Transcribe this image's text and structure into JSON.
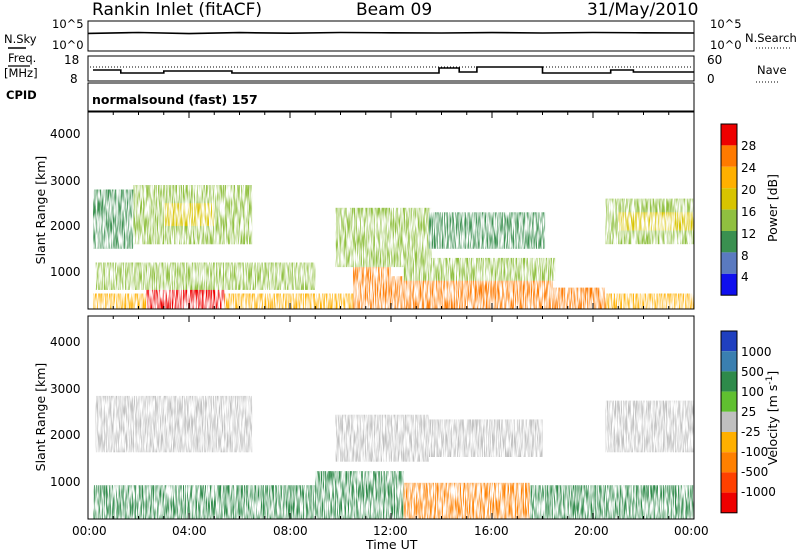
{
  "header": {
    "station": "Rankin Inlet (fitACF)",
    "beam": "Beam 09",
    "date": "31/May/2010"
  },
  "summary": {
    "nsky_label": "N.Sky",
    "nsky_ticks": [
      "10^5",
      "10^0"
    ],
    "nsearch_label": "N.Search",
    "nsearch_ticks": [
      "10^5",
      "10^0"
    ],
    "freq_label": "Freq.",
    "freq_unit": "[MHz]",
    "freq_ticks": [
      "18",
      "8"
    ],
    "nave_label": "Nave",
    "nave_ticks": [
      "60",
      "0"
    ],
    "cpid_label": "CPID",
    "cpid_text": "normalsound (fast) 157"
  },
  "power_scale": {
    "label": "Power [dB]",
    "ticks": [
      "28",
      "24",
      "20",
      "16",
      "12",
      "8",
      "4"
    ],
    "colors": [
      "#ee0000",
      "#ff7a00",
      "#ffb000",
      "#d8c400",
      "#90c040",
      "#3a9050",
      "#5a7ac0",
      "#1010ee"
    ]
  },
  "velocity_scale": {
    "label": "Velocity [m s^-1]",
    "ticks": [
      "1000",
      "500",
      "100",
      "25",
      "-25",
      "-100",
      "-500",
      "-1000"
    ],
    "colors": [
      "#2040c0",
      "#3a7fb0",
      "#2e8a4a",
      "#60c030",
      "#c0c0c0",
      "#ffb000",
      "#ff8000",
      "#ff4000",
      "#ee0000"
    ]
  },
  "xaxis": {
    "label": "Time UT",
    "ticks": [
      "00:00",
      "04:00",
      "08:00",
      "12:00",
      "16:00",
      "20:00",
      "00:00"
    ]
  },
  "yaxis": {
    "label": "Slant Range [km]",
    "ticks": [
      "1000",
      "2000",
      "3000",
      "4000"
    ]
  },
  "chart_data": [
    {
      "type": "line",
      "panel": "N.Sky / N.Search",
      "x_hours": [
        0,
        2,
        4,
        6,
        8,
        10,
        12,
        14,
        16,
        18,
        20,
        22,
        24
      ],
      "series": [
        {
          "name": "N.Sky",
          "values": [
            1000,
            1500,
            900,
            1400,
            1100,
            1500,
            1300,
            1200,
            1400,
            1200,
            1500,
            1300,
            1200
          ]
        }
      ]
    },
    {
      "type": "line",
      "panel": "Freq. / Nave",
      "series": [
        {
          "name": "Freq.",
          "segments": [
            {
              "x": [
                0.2,
                1.3
              ],
              "y": 12
            },
            {
              "x": [
                1.3,
                3.0
              ],
              "y": 10.5
            },
            {
              "x": [
                3.0,
                5.7
              ],
              "y": 11.5
            },
            {
              "x": [
                5.7,
                13.9
              ],
              "y": 10.5
            },
            {
              "x": [
                13.9,
                14.7
              ],
              "y": 13
            },
            {
              "x": [
                14.7,
                15.4
              ],
              "y": 11
            },
            {
              "x": [
                15.4,
                18.0
              ],
              "y": 13.5
            },
            {
              "x": [
                18.0,
                20.7
              ],
              "y": 10.5
            },
            {
              "x": [
                20.7,
                21.6
              ],
              "y": 12
            },
            {
              "x": [
                21.6,
                24
              ],
              "y": 11
            }
          ]
        },
        {
          "name": "Nave",
          "values": [
            40,
            40
          ]
        }
      ]
    },
    {
      "type": "heatmap",
      "panel": "Power",
      "xlabel": "Time UT",
      "ylabel": "Slant Range [km]",
      "xlim": [
        0,
        24
      ],
      "ylim": [
        180,
        4500
      ],
      "colorbar": "Power [dB]",
      "regions": [
        {
          "t": [
            0.2,
            24.0
          ],
          "r": [
            180,
            520
          ],
          "value": 20
        },
        {
          "t": [
            2.3,
            5.4
          ],
          "r": [
            180,
            820
          ],
          "value": 28
        },
        {
          "t": [
            10.5,
            12.0
          ],
          "r": [
            180,
            1100
          ],
          "value": 24
        },
        {
          "t": [
            12.0,
            18.4
          ],
          "r": [
            180,
            900
          ],
          "value": 26
        },
        {
          "t": [
            18.0,
            20.5
          ],
          "r": [
            180,
            650
          ],
          "value": 24
        },
        {
          "t": [
            0.3,
            9.0
          ],
          "r": [
            600,
            1200
          ],
          "value": 12
        },
        {
          "t": [
            0.2,
            1.8
          ],
          "r": [
            1500,
            2800
          ],
          "value": 10
        },
        {
          "t": [
            1.8,
            6.5
          ],
          "r": [
            1600,
            2900
          ],
          "value": 12
        },
        {
          "t": [
            3.0,
            5.0
          ],
          "r": [
            2000,
            2500
          ],
          "value": 18
        },
        {
          "t": [
            9.8,
            13.6
          ],
          "r": [
            1100,
            2400
          ],
          "value": 12
        },
        {
          "t": [
            13.5,
            18.1
          ],
          "r": [
            1500,
            2300
          ],
          "value": 10
        },
        {
          "t": [
            12.5,
            18.5
          ],
          "r": [
            800,
            1300
          ],
          "value": 12
        },
        {
          "t": [
            20.5,
            24.0
          ],
          "r": [
            1600,
            2600
          ],
          "value": 14
        },
        {
          "t": [
            21.0,
            24.0
          ],
          "r": [
            1900,
            2300
          ],
          "value": 18
        }
      ]
    },
    {
      "type": "heatmap",
      "panel": "Velocity",
      "xlabel": "Time UT",
      "ylabel": "Slant Range [km]",
      "xlim": [
        0,
        24
      ],
      "ylim": [
        180,
        4500
      ],
      "colorbar": "Velocity [m s^-1]",
      "regions": [
        {
          "t": [
            0.2,
            9.0
          ],
          "r": [
            180,
            900
          ],
          "value": 200
        },
        {
          "t": [
            0.3,
            6.5
          ],
          "r": [
            1600,
            2800
          ],
          "value": 0
        },
        {
          "t": [
            9.0,
            12.5
          ],
          "r": [
            180,
            1200
          ],
          "value": 150
        },
        {
          "t": [
            12.5,
            17.5
          ],
          "r": [
            180,
            950
          ],
          "value": -300
        },
        {
          "t": [
            17.5,
            24.0
          ],
          "r": [
            180,
            900
          ],
          "value": 100
        },
        {
          "t": [
            9.8,
            13.5
          ],
          "r": [
            1400,
            2400
          ],
          "value": 0
        },
        {
          "t": [
            13.5,
            18.0
          ],
          "r": [
            1500,
            2300
          ],
          "value": 0
        },
        {
          "t": [
            20.5,
            24.0
          ],
          "r": [
            1600,
            2700
          ],
          "value": 0
        }
      ]
    }
  ]
}
